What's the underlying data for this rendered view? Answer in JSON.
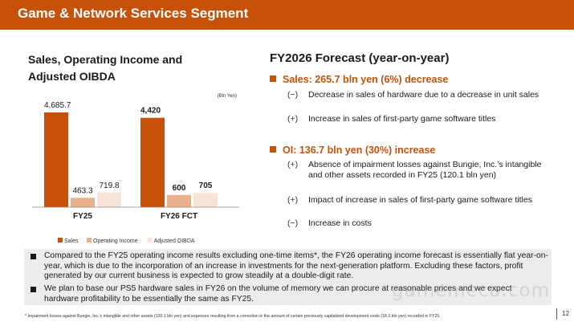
{
  "header": {
    "title": "Game & Network Services Segment"
  },
  "chart_title": "Sales, Operating Income and Adjusted OIBDA",
  "chart_data": {
    "type": "bar",
    "unit": "(Bln Yen)",
    "categories": [
      "FY25",
      "FY26 FCT"
    ],
    "series": [
      {
        "name": "Sales",
        "values": [
          4685.7,
          4420
        ],
        "labels": [
          "4,685.7",
          "4,420"
        ],
        "color": "#c8510a"
      },
      {
        "name": "Operating Income",
        "values": [
          463.3,
          600
        ],
        "labels": [
          "463.3",
          "600"
        ],
        "color": "#e8b08c"
      },
      {
        "name": "Adjusted OIBDA",
        "values": [
          719.8,
          705
        ],
        "labels": [
          "719.8",
          "705"
        ],
        "color": "#f9e3d6"
      }
    ],
    "bold_categories": [
      "FY26 FCT"
    ],
    "legend": "bottom",
    "ylim": [
      0,
      5000
    ]
  },
  "forecast": {
    "title": "FY2026 Forecast (year-on-year)",
    "sales_head": "Sales: 265.7 bln yen (6%) decrease",
    "sales_items": [
      {
        "sign": "(−)",
        "text": "Decrease in sales of hardware due to a decrease in unit sales"
      },
      {
        "sign": "(+)",
        "text": "Increase in sales of first-party game software titles"
      }
    ],
    "oi_head": "OI: 136.7 bln yen (30%) increase",
    "oi_items": [
      {
        "sign": "(+)",
        "text": "Absence of impairment losses against Bungie, Inc.’s intangible and other assets recorded in FY25 (120.1 bln yen)"
      },
      {
        "sign": "(+)",
        "text": "Impact of increase in sales of first-party game software titles"
      },
      {
        "sign": "(−)",
        "text": "Increase in costs"
      }
    ]
  },
  "notes": [
    "Compared to the FY25 operating income results excluding one-time items*, the FY26 operating income forecast is essentially flat year-on-year, which is due to the incorporation of an increase in investments for the next-generation platform. Excluding these factors, profit generated by our current business is expected to grow steadily at a double-digit rate.",
    "We plan to base our PS5 hardware sales in FY26 on the volume of memory we can procure at reasonable prices and we expect hardware profitability to be essentially the same as FY25."
  ],
  "footnote": "* Impairment losses against Bungie, Inc.'s intangible and other assets (120.1 bln yen) and expenses resulting from a correction in the amount of certain previously capitalized development costs (18.3 bln yen) recorded in FY25.",
  "page_number": "12",
  "watermark": "gamemeca.com"
}
